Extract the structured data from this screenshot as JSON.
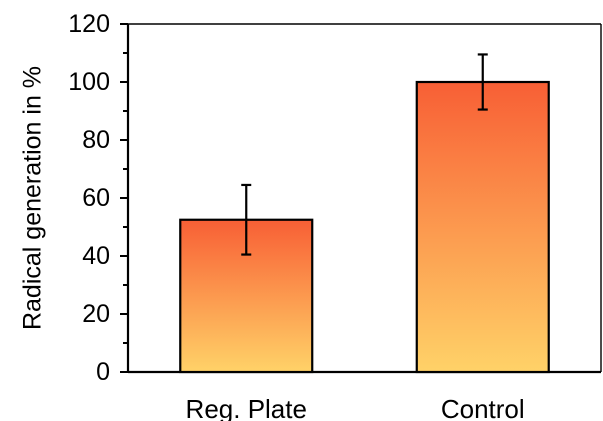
{
  "chart_data": {
    "type": "bar",
    "categories": [
      "Reg. Plate",
      "Control"
    ],
    "values": [
      52.5,
      100
    ],
    "error": [
      12,
      9.5
    ],
    "ylabel": "Radical generation in %",
    "xlabel": "",
    "ylim": [
      0,
      120
    ],
    "yticks": [
      0,
      20,
      40,
      60,
      80,
      100,
      120
    ],
    "grid": false,
    "colors": {
      "bar_top": "#f85f35",
      "bar_bottom": "#ffd268",
      "axis": "#000000"
    }
  }
}
